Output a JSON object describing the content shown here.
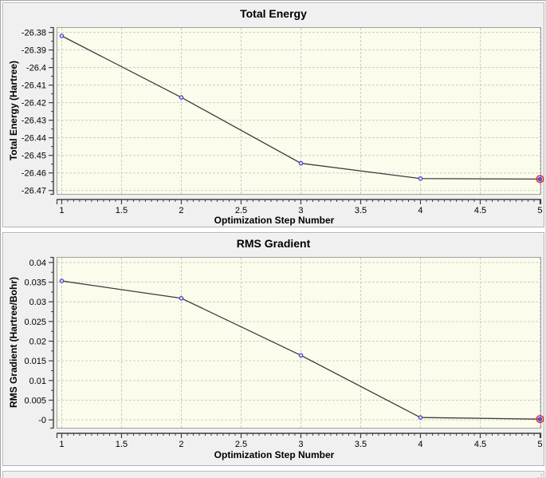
{
  "colors": {
    "panel_bg": "#f0f0f0",
    "panel_border": "#b3b3b3",
    "plot_bg": "#fcfcec",
    "plot_border": "#a0a0a0",
    "grid": "#cbcbcb",
    "axis": "#3f3f3f",
    "line": "#3c3c3c",
    "point_stroke": "#4343cf",
    "point_fill": "#d8d8f8",
    "highlight_ring": "#e23434",
    "highlight_fill": "#5353dd",
    "text": "#000000"
  },
  "chart_data": [
    {
      "type": "line",
      "title": "Total Energy",
      "xlabel": "Optimization Step Number",
      "ylabel": "Total Energy (Hartree)",
      "x": [
        1,
        2,
        3,
        4,
        5
      ],
      "y": [
        -26.382,
        -26.417,
        -26.4545,
        -26.4632,
        -26.4635
      ],
      "xlim": [
        0.957,
        5.01
      ],
      "ylim": [
        -26.4724,
        -26.377
      ],
      "xticks": [
        1,
        1.5,
        2,
        2.5,
        3,
        3.5,
        4,
        4.5,
        5
      ],
      "xtick_labels": [
        "1",
        "1.5",
        "2",
        "2.5",
        "3",
        "3.5",
        "4",
        "4.5",
        "5"
      ],
      "x_minor_step": 0.05,
      "yticks": [
        -26.38,
        -26.39,
        -26.4,
        -26.41,
        -26.42,
        -26.43,
        -26.44,
        -26.45,
        -26.46,
        -26.47
      ],
      "ytick_labels": [
        "-26.38",
        "-26.39",
        "-26.4",
        "-26.41",
        "-26.42",
        "-26.43",
        "-26.44",
        "-26.45",
        "-26.46",
        "-26.47"
      ],
      "y_minor_step": 0.005,
      "grid": true,
      "legend": "none",
      "highlight_last_point": true
    },
    {
      "type": "line",
      "title": "RMS Gradient",
      "xlabel": "Optimization Step Number",
      "ylabel": "RMS Gradient (Hartree/Bohr)",
      "x": [
        1,
        2,
        3,
        4,
        5
      ],
      "y": [
        0.0353,
        0.0309,
        0.0164,
        0.0006,
        0.0002
      ],
      "xlim": [
        0.957,
        5.01
      ],
      "ylim": [
        -0.0022,
        0.0414
      ],
      "xticks": [
        1,
        1.5,
        2,
        2.5,
        3,
        3.5,
        4,
        4.5,
        5
      ],
      "xtick_labels": [
        "1",
        "1.5",
        "2",
        "2.5",
        "3",
        "3.5",
        "4",
        "4.5",
        "5"
      ],
      "x_minor_step": 0.05,
      "yticks": [
        0.04,
        0.035,
        0.03,
        0.025,
        0.02,
        0.015,
        0.01,
        0.005,
        0
      ],
      "ytick_labels": [
        "0.04",
        "0.035",
        "0.03",
        "0.025",
        "0.02",
        "0.015",
        "0.01",
        "0.005",
        "-0"
      ],
      "y_minor_step": 0.0025,
      "grid": true,
      "legend": "none",
      "highlight_last_point": true
    }
  ]
}
